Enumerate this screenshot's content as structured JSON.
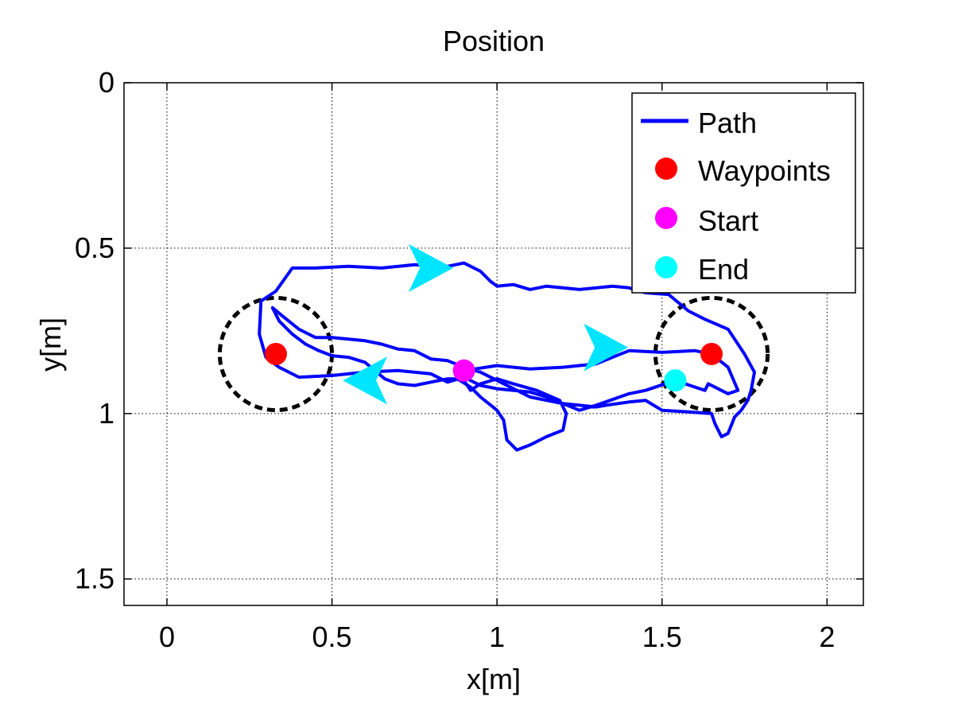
{
  "chart_data": {
    "type": "line",
    "title": "Position",
    "xlabel": "x[m]",
    "ylabel": "y[m]",
    "xlim": [
      -0.13,
      2.11
    ],
    "ylim": [
      0,
      1.58
    ],
    "y_reversed": true,
    "grid": true,
    "xticks": [
      0,
      0.5,
      1,
      1.5,
      2
    ],
    "xtick_labels": [
      "0",
      "0.5",
      "1",
      "1.5",
      "2"
    ],
    "yticks": [
      0,
      0.5,
      1,
      1.5
    ],
    "ytick_labels": [
      "0",
      "0.5",
      "1",
      "1.5"
    ],
    "legend": {
      "position": "top-right",
      "entries": [
        {
          "label": "Path",
          "kind": "line",
          "color": "#0000ff"
        },
        {
          "label": "Waypoints",
          "kind": "dot",
          "color": "#ff0000"
        },
        {
          "label": "Start",
          "kind": "dot",
          "color": "#ff00ff"
        },
        {
          "label": "End",
          "kind": "dot",
          "color": "#00ffff"
        }
      ]
    },
    "colors": {
      "path": "#0000ff",
      "waypoint": "#ff0000",
      "start": "#ff00ff",
      "end": "#00ffff",
      "arrow": "#00e5ff",
      "circle": "#000000"
    },
    "path": [
      [
        0.9,
        0.87
      ],
      [
        1.0,
        0.855
      ],
      [
        1.1,
        0.865
      ],
      [
        1.2,
        0.86
      ],
      [
        1.3,
        0.85
      ],
      [
        1.4,
        0.81
      ],
      [
        1.5,
        0.815
      ],
      [
        1.6,
        0.81
      ],
      [
        1.65,
        0.82
      ],
      [
        1.7,
        0.86
      ],
      [
        1.73,
        0.93
      ],
      [
        1.7,
        0.94
      ],
      [
        1.66,
        0.92
      ],
      [
        1.64,
        0.91
      ],
      [
        1.63,
        0.93
      ],
      [
        1.6,
        0.92
      ],
      [
        1.54,
        0.9
      ],
      [
        1.45,
        0.93
      ],
      [
        1.4,
        0.94
      ],
      [
        1.3,
        0.975
      ],
      [
        1.25,
        0.99
      ],
      [
        1.2,
        0.97
      ],
      [
        1.15,
        0.95
      ],
      [
        1.1,
        0.935
      ],
      [
        1.0,
        0.925
      ],
      [
        0.95,
        0.915
      ],
      [
        0.9,
        0.89
      ],
      [
        0.85,
        0.905
      ],
      [
        0.8,
        0.88
      ],
      [
        0.7,
        0.87
      ],
      [
        0.6,
        0.875
      ],
      [
        0.5,
        0.885
      ],
      [
        0.4,
        0.89
      ],
      [
        0.34,
        0.86
      ],
      [
        0.3,
        0.83
      ],
      [
        0.28,
        0.76
      ],
      [
        0.285,
        0.66
      ],
      [
        0.33,
        0.63
      ],
      [
        0.38,
        0.56
      ],
      [
        0.45,
        0.56
      ],
      [
        0.55,
        0.555
      ],
      [
        0.65,
        0.56
      ],
      [
        0.75,
        0.55
      ],
      [
        0.85,
        0.555
      ],
      [
        0.9,
        0.545
      ],
      [
        0.95,
        0.57
      ],
      [
        0.98,
        0.6
      ],
      [
        1.0,
        0.615
      ],
      [
        1.05,
        0.61
      ],
      [
        1.1,
        0.625
      ],
      [
        1.15,
        0.615
      ],
      [
        1.25,
        0.625
      ],
      [
        1.35,
        0.615
      ],
      [
        1.4,
        0.62
      ],
      [
        1.45,
        0.635
      ],
      [
        1.52,
        0.64
      ],
      [
        1.58,
        0.69
      ],
      [
        1.63,
        0.715
      ],
      [
        1.7,
        0.745
      ],
      [
        1.75,
        0.82
      ],
      [
        1.78,
        0.875
      ],
      [
        1.77,
        0.93
      ],
      [
        1.76,
        0.96
      ],
      [
        1.74,
        0.99
      ],
      [
        1.72,
        1.01
      ],
      [
        1.7,
        1.06
      ],
      [
        1.68,
        1.07
      ],
      [
        1.66,
        1.03
      ],
      [
        1.65,
        1.0
      ],
      [
        1.58,
        0.995
      ],
      [
        1.5,
        0.99
      ],
      [
        1.45,
        0.96
      ],
      [
        1.4,
        0.965
      ],
      [
        1.33,
        0.975
      ],
      [
        1.3,
        0.98
      ],
      [
        1.25,
        0.975
      ],
      [
        1.2,
        0.97
      ],
      [
        1.15,
        0.96
      ],
      [
        1.1,
        0.95
      ],
      [
        1.05,
        0.925
      ],
      [
        1.0,
        0.9
      ],
      [
        0.95,
        0.875
      ],
      [
        0.9,
        0.86
      ],
      [
        0.85,
        0.84
      ],
      [
        0.8,
        0.835
      ],
      [
        0.75,
        0.81
      ],
      [
        0.7,
        0.805
      ],
      [
        0.65,
        0.79
      ],
      [
        0.6,
        0.78
      ],
      [
        0.55,
        0.775
      ],
      [
        0.5,
        0.77
      ],
      [
        0.45,
        0.77
      ],
      [
        0.4,
        0.745
      ],
      [
        0.35,
        0.705
      ],
      [
        0.32,
        0.68
      ],
      [
        0.34,
        0.72
      ],
      [
        0.38,
        0.76
      ],
      [
        0.42,
        0.79
      ],
      [
        0.46,
        0.81
      ],
      [
        0.5,
        0.825
      ],
      [
        0.55,
        0.83
      ],
      [
        0.6,
        0.845
      ],
      [
        0.63,
        0.87
      ],
      [
        0.66,
        0.895
      ],
      [
        0.7,
        0.91
      ],
      [
        0.75,
        0.915
      ],
      [
        0.8,
        0.905
      ],
      [
        0.85,
        0.895
      ],
      [
        0.88,
        0.895
      ],
      [
        0.92,
        0.92
      ],
      [
        0.95,
        0.95
      ],
      [
        1.0,
        0.99
      ],
      [
        1.02,
        1.02
      ],
      [
        1.03,
        1.08
      ],
      [
        1.06,
        1.11
      ],
      [
        1.1,
        1.095
      ],
      [
        1.15,
        1.07
      ],
      [
        1.2,
        1.05
      ],
      [
        1.21,
        1.0
      ],
      [
        1.19,
        0.96
      ],
      [
        1.12,
        0.93
      ],
      [
        1.05,
        0.91
      ],
      [
        1.0,
        0.895
      ],
      [
        0.95,
        0.91
      ],
      [
        0.92,
        0.93
      ],
      [
        0.9,
        0.9
      ]
    ],
    "waypoints": [
      {
        "x": 0.33,
        "y": 0.82
      },
      {
        "x": 1.65,
        "y": 0.82
      }
    ],
    "waypoint_radius": 0.17,
    "start": {
      "x": 0.9,
      "y": 0.87
    },
    "end": {
      "x": 1.54,
      "y": 0.9
    },
    "direction_arrows": [
      {
        "x": 0.8,
        "y": 0.56,
        "direction": "right"
      },
      {
        "x": 1.33,
        "y": 0.8,
        "direction": "right"
      },
      {
        "x": 0.6,
        "y": 0.9,
        "direction": "left"
      }
    ]
  }
}
